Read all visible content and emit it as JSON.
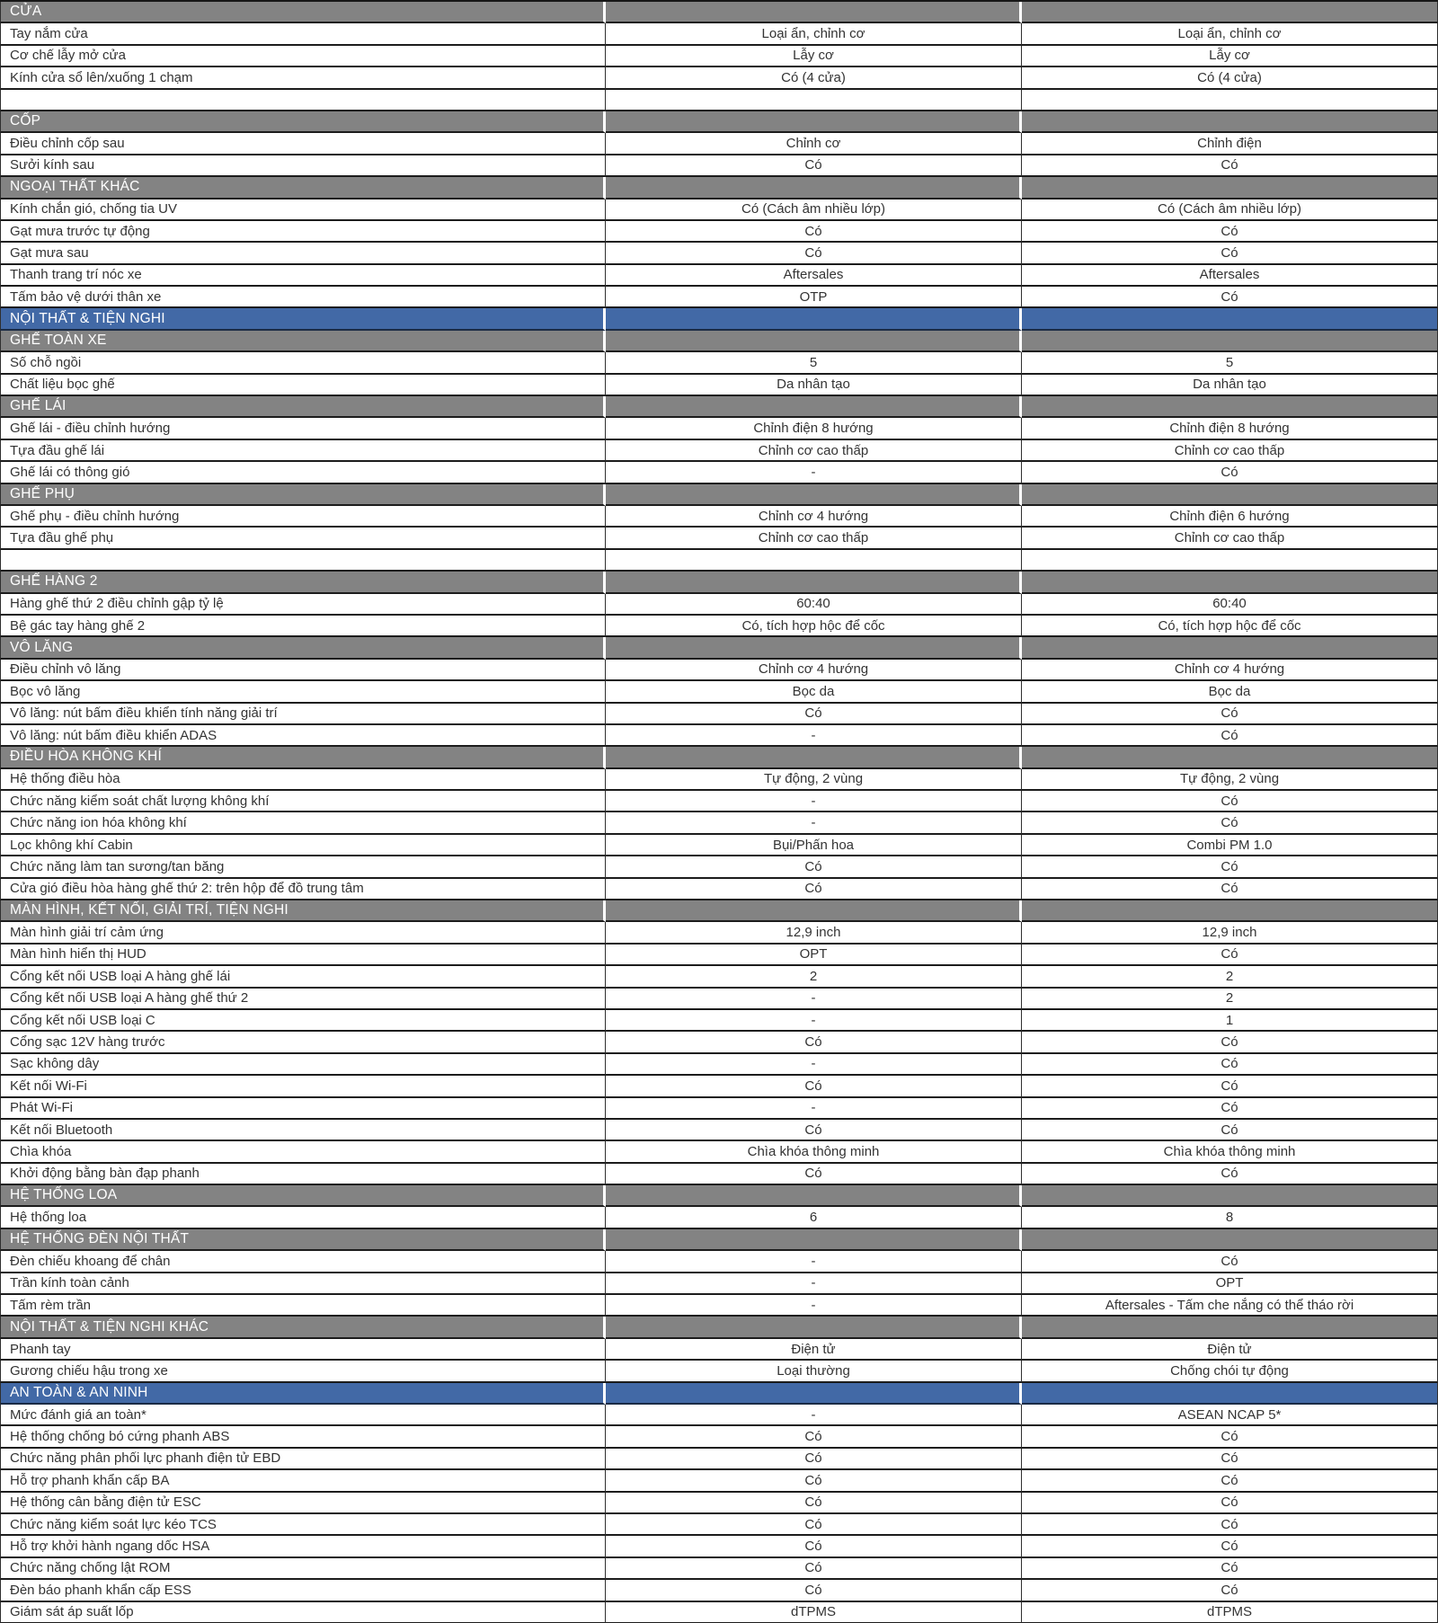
{
  "document": {
    "type": "vehicle-specification-comparison-table",
    "language": "vi",
    "columns": 3
  },
  "colors": {
    "section_header_bg": "#838383",
    "section_blue_bg": "#4269A6",
    "row_border": "#1c1c1c",
    "text": "#333333",
    "header_text": "#ffffff"
  },
  "table": {
    "rows": [
      {
        "type": "section",
        "label": "CỬA"
      },
      {
        "type": "row",
        "label": "Tay nắm cửa",
        "v1": "Loại ẩn, chỉnh cơ",
        "v2": "Loại ẩn, chỉnh cơ"
      },
      {
        "type": "row",
        "label": "Cơ chế lẫy mở cửa",
        "v1": "Lẫy cơ",
        "v2": "Lẫy cơ"
      },
      {
        "type": "row",
        "label": "Kính cửa sổ lên/xuống 1 chạm",
        "v1": "Có (4 cửa)",
        "v2": "Có (4 cửa)"
      },
      {
        "type": "empty",
        "label": "",
        "v1": "",
        "v2": ""
      },
      {
        "type": "section",
        "label": "CỐP"
      },
      {
        "type": "row",
        "label": "Điều chỉnh cốp sau",
        "v1": "Chỉnh cơ",
        "v2": "Chỉnh điện"
      },
      {
        "type": "row",
        "label": "Sưởi kính sau",
        "v1": "Có",
        "v2": "Có"
      },
      {
        "type": "section",
        "label": "NGOẠI THẤT KHÁC"
      },
      {
        "type": "row",
        "label": "Kính chắn gió, chống tia UV",
        "v1": "Có (Cách âm nhiều lớp)",
        "v2": "Có (Cách âm nhiều lớp)"
      },
      {
        "type": "row",
        "label": "Gạt mưa trước tự động",
        "v1": "Có",
        "v2": "Có"
      },
      {
        "type": "row",
        "label": "Gạt mưa sau",
        "v1": "Có",
        "v2": "Có"
      },
      {
        "type": "row",
        "label": "Thanh trang trí nóc xe",
        "v1": "Aftersales",
        "v2": "Aftersales"
      },
      {
        "type": "row",
        "label": "Tấm bảo vệ dưới thân xe",
        "v1": "OTP",
        "v2": "Có"
      },
      {
        "type": "section-blue",
        "label": "NỘI THẤT & TIỆN NGHI"
      },
      {
        "type": "section",
        "label": "GHẾ TOÀN XE"
      },
      {
        "type": "row",
        "label": "Số chỗ ngồi",
        "v1": "5",
        "v2": "5"
      },
      {
        "type": "row",
        "label": "Chất liệu bọc ghế",
        "v1": "Da nhân tạo",
        "v2": "Da nhân tạo"
      },
      {
        "type": "section",
        "label": "GHẾ LÁI"
      },
      {
        "type": "row",
        "label": "Ghế lái - điều chỉnh hướng",
        "v1": "Chỉnh điện 8 hướng",
        "v2": "Chỉnh điện 8 hướng"
      },
      {
        "type": "row",
        "label": "Tựa đầu ghế lái",
        "v1": "Chỉnh cơ cao thấp",
        "v2": "Chỉnh cơ cao thấp"
      },
      {
        "type": "row",
        "label": "Ghế lái có thông gió",
        "v1": "-",
        "v2": "Có"
      },
      {
        "type": "section",
        "label": "GHẾ PHỤ"
      },
      {
        "type": "row",
        "label": "Ghế phụ - điều chỉnh hướng",
        "v1": "Chỉnh cơ 4 hướng",
        "v2": "Chỉnh điện 6 hướng"
      },
      {
        "type": "row",
        "label": "Tựa đầu ghế phụ",
        "v1": "Chỉnh cơ cao thấp",
        "v2": "Chỉnh cơ cao thấp"
      },
      {
        "type": "empty",
        "label": "",
        "v1": "",
        "v2": ""
      },
      {
        "type": "section",
        "label": "GHẾ HÀNG 2"
      },
      {
        "type": "row",
        "label": "Hàng ghế thứ 2 điều chỉnh gập tỷ lệ",
        "v1": "60:40",
        "v2": "60:40"
      },
      {
        "type": "row",
        "label": "Bệ gác tay hàng ghế 2",
        "v1": "Có, tích hợp hộc để cốc",
        "v2": "Có, tích hợp hộc để cốc"
      },
      {
        "type": "section",
        "label": "VÔ LĂNG"
      },
      {
        "type": "row",
        "label": "Điều chỉnh vô lăng",
        "v1": "Chỉnh cơ 4 hướng",
        "v2": "Chỉnh cơ 4 hướng"
      },
      {
        "type": "row",
        "label": "Bọc vô lăng",
        "v1": "Bọc da",
        "v2": "Bọc da"
      },
      {
        "type": "row",
        "label": "Vô lăng: nút bấm điều khiển tính năng giải trí",
        "v1": "Có",
        "v2": "Có"
      },
      {
        "type": "row",
        "label": "Vô lăng: nút bấm điều khiển ADAS",
        "v1": "-",
        "v2": "Có"
      },
      {
        "type": "section",
        "label": "ĐIỀU HÒA KHÔNG KHÍ"
      },
      {
        "type": "row",
        "label": "Hệ thống điều hòa",
        "v1": "Tự động, 2 vùng",
        "v2": "Tự động, 2 vùng"
      },
      {
        "type": "row",
        "label": "Chức năng kiểm soát chất lượng không khí",
        "v1": "-",
        "v2": "Có"
      },
      {
        "type": "row",
        "label": "Chức năng ion hóa không khí",
        "v1": "-",
        "v2": "Có"
      },
      {
        "type": "row",
        "label": "Lọc không khí Cabin",
        "v1": "Bụi/Phấn hoa",
        "v2": "Combi PM 1.0"
      },
      {
        "type": "row",
        "label": "Chức năng làm tan sương/tan băng",
        "v1": "Có",
        "v2": "Có"
      },
      {
        "type": "row",
        "label": "Cửa gió điều hòa hàng ghế thứ 2: trên hộp để đồ trung tâm",
        "v1": "Có",
        "v2": "Có"
      },
      {
        "type": "section",
        "label": "MÀN HÌNH, KẾT NỐI, GIẢI TRÍ, TIỆN NGHI"
      },
      {
        "type": "row",
        "label": "Màn hình giải trí cảm ứng",
        "v1": "12,9 inch",
        "v2": "12,9 inch"
      },
      {
        "type": "row",
        "label": "Màn hình hiển thị HUD",
        "v1": "OPT",
        "v2": "Có"
      },
      {
        "type": "row",
        "label": "Cổng kết nối USB loại A hàng ghế lái",
        "v1": "2",
        "v2": "2"
      },
      {
        "type": "row",
        "label": "Cổng kết nối USB loại A hàng ghế thứ 2",
        "v1": "-",
        "v2": "2"
      },
      {
        "type": "row",
        "label": "Cổng kết nối USB loại C",
        "v1": "-",
        "v2": "1"
      },
      {
        "type": "row",
        "label": "Cổng sạc 12V hàng trước",
        "v1": "Có",
        "v2": "Có"
      },
      {
        "type": "row",
        "label": "Sạc không dây",
        "v1": "-",
        "v2": "Có"
      },
      {
        "type": "row",
        "label": "Kết nối Wi-Fi",
        "v1": "Có",
        "v2": "Có"
      },
      {
        "type": "row",
        "label": "Phát Wi-Fi",
        "v1": "-",
        "v2": "Có"
      },
      {
        "type": "row",
        "label": "Kết nối Bluetooth",
        "v1": "Có",
        "v2": "Có"
      },
      {
        "type": "row",
        "label": "Chìa khóa",
        "v1": "Chìa khóa thông minh",
        "v2": "Chìa khóa thông minh"
      },
      {
        "type": "row",
        "label": "Khởi động bằng bàn đạp phanh",
        "v1": "Có",
        "v2": "Có"
      },
      {
        "type": "section",
        "label": "HỆ THỐNG LOA"
      },
      {
        "type": "row",
        "label": "Hệ thống loa",
        "v1": "6",
        "v2": "8"
      },
      {
        "type": "section",
        "label": "HỆ THỐNG ĐÈN NỘI THẤT"
      },
      {
        "type": "row",
        "label": "Đèn chiếu khoang để chân",
        "v1": "-",
        "v2": "Có"
      },
      {
        "type": "row",
        "label": "Trần kính toàn cảnh",
        "v1": "-",
        "v2": "OPT"
      },
      {
        "type": "row",
        "label": "Tấm rèm trần",
        "v1": "-",
        "v2": "Aftersales - Tấm che nắng có thể tháo rời"
      },
      {
        "type": "section",
        "label": "NỘI THẤT & TIỆN NGHI KHÁC"
      },
      {
        "type": "row",
        "label": "Phanh tay",
        "v1": "Điện tử",
        "v2": "Điện tử"
      },
      {
        "type": "row",
        "label": "Gương chiếu hậu trong xe",
        "v1": "Loại thường",
        "v2": "Chống chói tự động"
      },
      {
        "type": "section-blue",
        "label": "AN TOÀN & AN NINH"
      },
      {
        "type": "row",
        "label": "Mức đánh giá an toàn*",
        "v1": "-",
        "v2": "ASEAN NCAP 5*"
      },
      {
        "type": "row",
        "label": "Hệ thống chống bó cứng phanh ABS",
        "v1": "Có",
        "v2": "Có"
      },
      {
        "type": "row",
        "label": "Chức năng phân phối lực phanh điện tử EBD",
        "v1": "Có",
        "v2": "Có"
      },
      {
        "type": "row",
        "label": "Hỗ trợ phanh khẩn cấp BA",
        "v1": "Có",
        "v2": "Có"
      },
      {
        "type": "row",
        "label": "Hệ thống cân bằng điện tử ESC",
        "v1": "Có",
        "v2": "Có"
      },
      {
        "type": "row",
        "label": "Chức năng kiểm soát lực kéo TCS",
        "v1": "Có",
        "v2": "Có"
      },
      {
        "type": "row",
        "label": "Hỗ trợ khởi hành ngang dốc HSA",
        "v1": "Có",
        "v2": "Có"
      },
      {
        "type": "row",
        "label": "Chức năng chống lật ROM",
        "v1": "Có",
        "v2": "Có"
      },
      {
        "type": "row",
        "label": "Đèn báo phanh khẩn cấp ESS",
        "v1": "Có",
        "v2": "Có"
      },
      {
        "type": "row",
        "label": "Giám sát áp suất lốp",
        "v1": "dTPMS",
        "v2": "dTPMS"
      }
    ]
  }
}
